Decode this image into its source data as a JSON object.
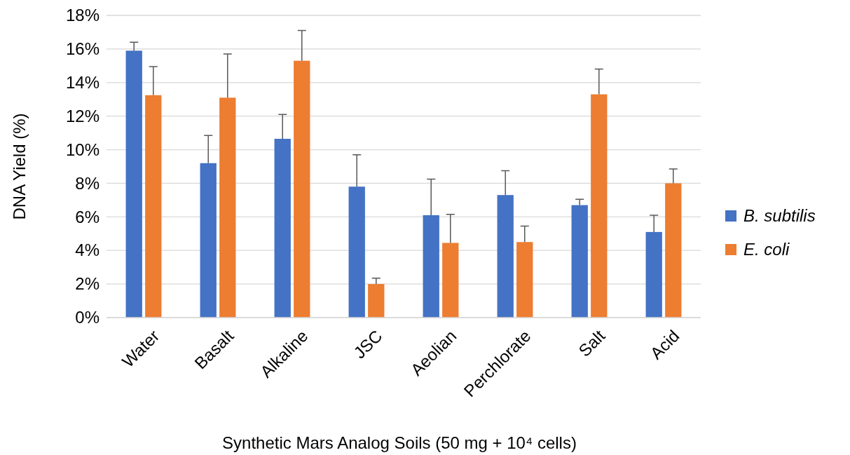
{
  "chart_data": {
    "type": "bar",
    "xlabel": "Synthetic Mars Analog Soils (50 mg + 10⁴ cells)",
    "ylabel": "DNA Yield (%)",
    "categories": [
      "Water",
      "Basalt",
      "Alkaline",
      "JSC",
      "Aeolian",
      "Perchlorate",
      "Salt",
      "Acid"
    ],
    "series": [
      {
        "name": "B. subtilis",
        "color": "#4472c4",
        "values": [
          15.9,
          9.2,
          10.65,
          7.8,
          6.1,
          7.3,
          6.7,
          5.1
        ],
        "errors": [
          [
            15.9,
            16.4
          ],
          [
            9.2,
            10.85
          ],
          [
            10.65,
            12.1
          ],
          [
            7.8,
            9.7
          ],
          [
            6.1,
            8.25
          ],
          [
            7.3,
            8.75
          ],
          [
            6.7,
            7.05
          ],
          [
            5.1,
            6.1
          ]
        ]
      },
      {
        "name": "E. coli",
        "color": "#ed7d31",
        "values": [
          13.25,
          13.1,
          15.3,
          2.0,
          4.45,
          4.5,
          13.3,
          8.0
        ],
        "errors": [
          [
            13.25,
            14.95
          ],
          [
            13.1,
            15.7
          ],
          [
            15.3,
            17.1
          ],
          [
            2.0,
            2.35
          ],
          [
            4.45,
            6.15
          ],
          [
            4.5,
            5.45
          ],
          [
            13.3,
            14.8
          ],
          [
            8.0,
            8.85
          ]
        ]
      }
    ],
    "ylim": [
      0,
      18
    ],
    "yticks": [
      {
        "value": 0,
        "label": "0%"
      },
      {
        "value": 2,
        "label": "2%"
      },
      {
        "value": 4,
        "label": "4%"
      },
      {
        "value": 6,
        "label": "6%"
      },
      {
        "value": 8,
        "label": "8%"
      },
      {
        "value": 10,
        "label": "10%"
      },
      {
        "value": 12,
        "label": "12%"
      },
      {
        "value": 14,
        "label": "14%"
      },
      {
        "value": 16,
        "label": "16%"
      },
      {
        "value": 18,
        "label": "18%"
      }
    ],
    "grid": "y",
    "legend": "right"
  }
}
